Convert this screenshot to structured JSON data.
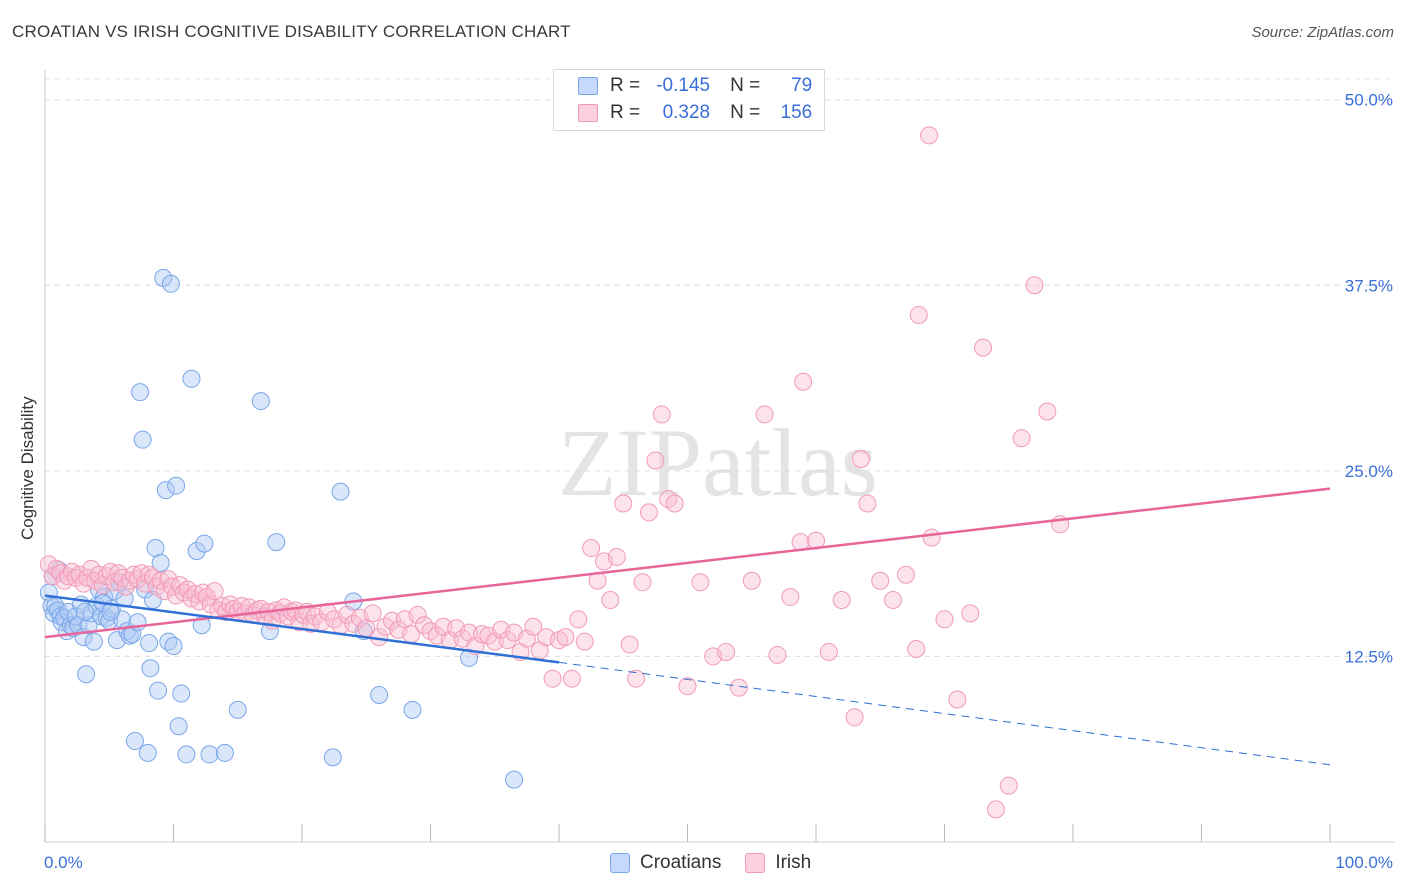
{
  "title": "CROATIAN VS IRISH COGNITIVE DISABILITY CORRELATION CHART",
  "source": "Source: ZipAtlas.com",
  "watermark": "ZIPatlas",
  "legend": {
    "rows": [
      {
        "r_label": "R =",
        "r_value": "-0.145",
        "n_label": "N =",
        "n_value": "79"
      },
      {
        "r_label": "R =",
        "r_value": "0.328",
        "n_label": "N =",
        "n_value": "156"
      }
    ]
  },
  "bottom_legend": [
    "Croatians",
    "Irish"
  ],
  "chart_data": {
    "type": "scatter",
    "title": "CROATIAN VS IRISH COGNITIVE DISABILITY CORRELATION CHART",
    "xlabel": "",
    "ylabel": "Cognitive Disability",
    "xlim": [
      0,
      100
    ],
    "ylim": [
      0,
      52
    ],
    "x_tick_labels": [
      "0.0%",
      "100.0%"
    ],
    "y_ticks": [
      12.5,
      25.0,
      37.5,
      50.0
    ],
    "y_tick_labels": [
      "12.5%",
      "25.0%",
      "37.5%",
      "50.0%"
    ],
    "grid": true,
    "colors": {
      "Croatians": "#7aa6e8",
      "Irish": "#f19ab8",
      "croatian_line": "#2f6fd6",
      "irish_line": "#e8659a",
      "axis_labels": "#3a6fd8"
    },
    "series": [
      {
        "name": "Croatians",
        "r": -0.145,
        "n": 79,
        "trend": {
          "x": [
            0,
            40
          ],
          "y": [
            16.6,
            12.1
          ]
        },
        "trend_extension": {
          "x": [
            40,
            100
          ],
          "y": [
            12.1,
            5.2
          ]
        },
        "points": [
          [
            0.3,
            16.8
          ],
          [
            0.5,
            15.9
          ],
          [
            0.7,
            15.4
          ],
          [
            0.8,
            15.9
          ],
          [
            1.0,
            15.6
          ],
          [
            1.2,
            15.2
          ],
          [
            1.3,
            14.8
          ],
          [
            1.5,
            15.1
          ],
          [
            1.7,
            14.2
          ],
          [
            1.8,
            15.5
          ],
          [
            2.0,
            14.6
          ],
          [
            2.2,
            14.4
          ],
          [
            2.4,
            15.2
          ],
          [
            2.6,
            14.6
          ],
          [
            2.8,
            16.0
          ],
          [
            3.0,
            13.8
          ],
          [
            3.2,
            11.3
          ],
          [
            3.4,
            14.6
          ],
          [
            3.6,
            15.4
          ],
          [
            3.8,
            13.5
          ],
          [
            4.0,
            15.9
          ],
          [
            4.2,
            17.0
          ],
          [
            4.4,
            15.2
          ],
          [
            4.6,
            16.5
          ],
          [
            4.8,
            15.1
          ],
          [
            5.0,
            14.9
          ],
          [
            5.2,
            15.7
          ],
          [
            5.4,
            16.9
          ],
          [
            5.6,
            13.6
          ],
          [
            5.8,
            17.5
          ],
          [
            6.0,
            15.0
          ],
          [
            6.2,
            16.4
          ],
          [
            6.4,
            14.2
          ],
          [
            6.6,
            13.9
          ],
          [
            6.8,
            14.0
          ],
          [
            7.0,
            6.8
          ],
          [
            7.2,
            14.8
          ],
          [
            7.4,
            30.3
          ],
          [
            7.6,
            27.1
          ],
          [
            7.8,
            17.0
          ],
          [
            8.0,
            6.0
          ],
          [
            8.2,
            11.7
          ],
          [
            8.4,
            16.3
          ],
          [
            8.6,
            19.8
          ],
          [
            8.8,
            10.2
          ],
          [
            9.0,
            18.8
          ],
          [
            9.2,
            38.0
          ],
          [
            9.4,
            23.7
          ],
          [
            9.6,
            13.5
          ],
          [
            9.8,
            37.6
          ],
          [
            10.0,
            13.2
          ],
          [
            10.2,
            24.0
          ],
          [
            10.4,
            7.8
          ],
          [
            10.6,
            10.0
          ],
          [
            11.0,
            5.9
          ],
          [
            11.4,
            31.2
          ],
          [
            11.8,
            19.6
          ],
          [
            12.2,
            14.6
          ],
          [
            12.4,
            20.1
          ],
          [
            12.8,
            5.9
          ],
          [
            14.0,
            6.0
          ],
          [
            15.0,
            8.9
          ],
          [
            16.8,
            29.7
          ],
          [
            17.5,
            14.2
          ],
          [
            18.0,
            20.2
          ],
          [
            22.4,
            5.7
          ],
          [
            23.0,
            23.6
          ],
          [
            24.0,
            16.2
          ],
          [
            24.8,
            14.2
          ],
          [
            26.0,
            9.9
          ],
          [
            28.6,
            8.9
          ],
          [
            33.0,
            12.4
          ],
          [
            36.5,
            4.2
          ],
          [
            0.6,
            17.9
          ],
          [
            1.1,
            18.3
          ],
          [
            3.1,
            15.5
          ],
          [
            4.5,
            16.1
          ],
          [
            5.1,
            15.5
          ],
          [
            8.1,
            13.4
          ]
        ]
      },
      {
        "name": "Irish",
        "r": 0.328,
        "n": 156,
        "trend": {
          "x": [
            0,
            100
          ],
          "y": [
            13.8,
            23.8
          ]
        },
        "points": [
          [
            0.3,
            18.7
          ],
          [
            0.6,
            17.9
          ],
          [
            0.9,
            18.4
          ],
          [
            1.2,
            18.1
          ],
          [
            1.5,
            17.6
          ],
          [
            1.8,
            17.9
          ],
          [
            2.1,
            18.2
          ],
          [
            2.4,
            17.8
          ],
          [
            2.7,
            18.0
          ],
          [
            3.0,
            17.4
          ],
          [
            3.3,
            17.8
          ],
          [
            3.6,
            18.4
          ],
          [
            3.9,
            17.6
          ],
          [
            4.2,
            18.0
          ],
          [
            4.5,
            17.3
          ],
          [
            4.8,
            17.9
          ],
          [
            5.1,
            18.2
          ],
          [
            5.4,
            17.5
          ],
          [
            5.7,
            18.1
          ],
          [
            6.0,
            17.8
          ],
          [
            6.3,
            17.2
          ],
          [
            6.6,
            17.6
          ],
          [
            6.9,
            18.0
          ],
          [
            7.2,
            17.7
          ],
          [
            7.5,
            18.1
          ],
          [
            7.8,
            17.4
          ],
          [
            8.1,
            18.0
          ],
          [
            8.4,
            17.8
          ],
          [
            8.7,
            17.2
          ],
          [
            9.0,
            17.6
          ],
          [
            9.3,
            16.9
          ],
          [
            9.6,
            17.7
          ],
          [
            9.9,
            17.2
          ],
          [
            10.2,
            16.6
          ],
          [
            10.5,
            17.3
          ],
          [
            10.8,
            16.8
          ],
          [
            11.1,
            17.0
          ],
          [
            11.4,
            16.4
          ],
          [
            11.7,
            16.7
          ],
          [
            12.0,
            16.2
          ],
          [
            12.3,
            16.8
          ],
          [
            12.6,
            16.5
          ],
          [
            12.9,
            16.0
          ],
          [
            13.2,
            16.9
          ],
          [
            13.5,
            15.6
          ],
          [
            13.8,
            15.9
          ],
          [
            14.1,
            15.5
          ],
          [
            14.4,
            16.0
          ],
          [
            14.7,
            15.7
          ],
          [
            15.0,
            15.5
          ],
          [
            15.3,
            15.9
          ],
          [
            15.6,
            15.4
          ],
          [
            15.9,
            15.8
          ],
          [
            16.2,
            15.3
          ],
          [
            16.5,
            15.6
          ],
          [
            16.8,
            15.7
          ],
          [
            17.1,
            15.2
          ],
          [
            17.4,
            15.5
          ],
          [
            17.7,
            14.9
          ],
          [
            18.0,
            15.6
          ],
          [
            18.3,
            15.4
          ],
          [
            18.6,
            15.8
          ],
          [
            18.9,
            15.2
          ],
          [
            19.2,
            15.5
          ],
          [
            19.5,
            15.6
          ],
          [
            19.8,
            14.8
          ],
          [
            20.1,
            15.3
          ],
          [
            20.4,
            15.5
          ],
          [
            20.7,
            14.7
          ],
          [
            21.0,
            15.2
          ],
          [
            21.5,
            14.8
          ],
          [
            22.0,
            15.5
          ],
          [
            22.5,
            15.0
          ],
          [
            23.0,
            14.6
          ],
          [
            23.5,
            15.3
          ],
          [
            24.0,
            14.7
          ],
          [
            24.5,
            15.1
          ],
          [
            25.0,
            14.4
          ],
          [
            25.5,
            15.4
          ],
          [
            26.0,
            13.8
          ],
          [
            26.5,
            14.5
          ],
          [
            27.0,
            14.9
          ],
          [
            27.5,
            14.3
          ],
          [
            28.0,
            15.0
          ],
          [
            28.5,
            14.0
          ],
          [
            29.0,
            15.3
          ],
          [
            29.5,
            14.6
          ],
          [
            30.0,
            14.2
          ],
          [
            30.5,
            13.9
          ],
          [
            31.0,
            14.5
          ],
          [
            31.5,
            13.6
          ],
          [
            32.0,
            14.4
          ],
          [
            32.5,
            13.7
          ],
          [
            33.0,
            14.1
          ],
          [
            33.5,
            13.2
          ],
          [
            34.0,
            14.0
          ],
          [
            34.5,
            13.9
          ],
          [
            35.0,
            13.5
          ],
          [
            35.5,
            14.3
          ],
          [
            36.0,
            13.6
          ],
          [
            36.5,
            14.1
          ],
          [
            37.0,
            12.8
          ],
          [
            37.5,
            13.7
          ],
          [
            38.0,
            14.5
          ],
          [
            38.5,
            12.9
          ],
          [
            39.0,
            13.8
          ],
          [
            39.5,
            11.0
          ],
          [
            40.0,
            13.6
          ],
          [
            40.5,
            13.8
          ],
          [
            41.0,
            11.0
          ],
          [
            41.5,
            15.0
          ],
          [
            42.0,
            13.5
          ],
          [
            42.5,
            19.8
          ],
          [
            43.0,
            17.6
          ],
          [
            43.5,
            18.9
          ],
          [
            44.0,
            16.3
          ],
          [
            44.5,
            19.2
          ],
          [
            45.0,
            22.8
          ],
          [
            45.5,
            13.3
          ],
          [
            46.0,
            11.0
          ],
          [
            46.5,
            17.5
          ],
          [
            47.0,
            22.2
          ],
          [
            47.5,
            25.7
          ],
          [
            48.0,
            28.8
          ],
          [
            48.5,
            23.1
          ],
          [
            49.0,
            22.8
          ],
          [
            50.0,
            10.5
          ],
          [
            51.0,
            17.5
          ],
          [
            52.0,
            12.5
          ],
          [
            53.0,
            12.8
          ],
          [
            54.0,
            10.4
          ],
          [
            55.0,
            17.6
          ],
          [
            56.0,
            28.8
          ],
          [
            57.0,
            12.6
          ],
          [
            58.0,
            16.5
          ],
          [
            58.8,
            20.2
          ],
          [
            59.0,
            31.0
          ],
          [
            60.0,
            20.3
          ],
          [
            61.0,
            12.8
          ],
          [
            62.0,
            16.3
          ],
          [
            63.0,
            8.4
          ],
          [
            63.5,
            25.8
          ],
          [
            64.0,
            22.8
          ],
          [
            65.0,
            17.6
          ],
          [
            66.0,
            16.3
          ],
          [
            67.0,
            18.0
          ],
          [
            67.8,
            13.0
          ],
          [
            68.0,
            35.5
          ],
          [
            68.8,
            47.6
          ],
          [
            69.0,
            20.5
          ],
          [
            70.0,
            15.0
          ],
          [
            71.0,
            9.6
          ],
          [
            72.0,
            15.4
          ],
          [
            73.0,
            33.3
          ],
          [
            74.0,
            2.2
          ],
          [
            75.0,
            3.8
          ],
          [
            76.0,
            27.2
          ],
          [
            77.0,
            37.5
          ],
          [
            78.0,
            29.0
          ],
          [
            79.0,
            21.4
          ]
        ]
      }
    ]
  }
}
